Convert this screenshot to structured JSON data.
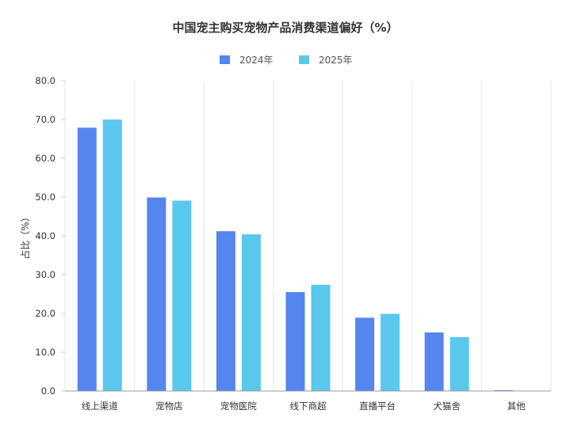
{
  "chart_data": {
    "type": "bar",
    "title": "中国宠主购买宠物产品消费渠道偏好（%）",
    "ylabel": "占比（%）",
    "xlabel": "",
    "ylim": [
      0,
      80
    ],
    "yticks": [
      0,
      10,
      20,
      30,
      40,
      50,
      60,
      70,
      80
    ],
    "ytick_labels": [
      "0.0",
      "10.0",
      "20.0",
      "30.0",
      "40.0",
      "50.0",
      "60.0",
      "70.0",
      "80.0"
    ],
    "grid": "vertical",
    "legend_position": "top-center",
    "categories": [
      "线上渠道",
      "宠物店",
      "宠物医院",
      "线下商超",
      "直播平台",
      "犬猫舍",
      "其他"
    ],
    "series": [
      {
        "name": "2024年",
        "color": "#5585ef",
        "values": [
          68.0,
          50.0,
          41.3,
          25.6,
          19.0,
          15.2,
          0.3
        ]
      },
      {
        "name": "2025年",
        "color": "#5ac8ec",
        "values": [
          70.1,
          49.2,
          40.5,
          27.5,
          20.0,
          14.0,
          0.2
        ]
      }
    ]
  }
}
